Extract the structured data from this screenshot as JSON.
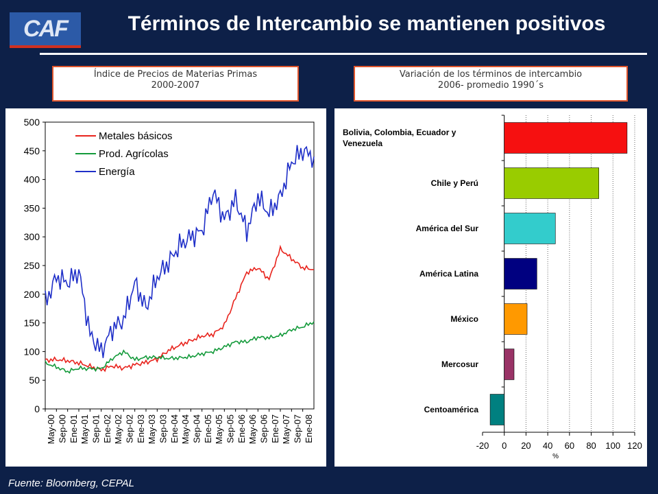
{
  "logo": {
    "text": "CAF"
  },
  "header": {
    "title": "Términos de Intercambio se mantienen positivos"
  },
  "captions": {
    "left": {
      "line1": "Índice de Precios de Materias Primas",
      "line2": "2000-2007"
    },
    "right": {
      "line1": "Variación de los términos de intercambio",
      "line2": "2006- promedio 1990´s"
    }
  },
  "source": "Fuente: Bloomberg, CEPAL",
  "chart_data": [
    {
      "type": "line",
      "categories": [
        "May-00",
        "Sep-00",
        "Ene-01",
        "May-01",
        "Sep-01",
        "Ene-02",
        "May-02",
        "Sep-02",
        "Ene-03",
        "May-03",
        "Sep-03",
        "Ene-04",
        "May-04",
        "Sep-04",
        "Ene-05",
        "May-05",
        "Sep-05",
        "Ene-06",
        "May-06",
        "Sep-06",
        "Ene-07",
        "May-07",
        "Sep-07",
        "Ene-08"
      ],
      "ylim": [
        0,
        500
      ],
      "yticks": [
        0,
        50,
        100,
        150,
        200,
        250,
        300,
        350,
        400,
        450,
        500
      ],
      "legend_position": "top-left",
      "series": [
        {
          "name": "Metales básicos",
          "color": "#e8231c",
          "values": [
            85,
            86,
            84,
            80,
            74,
            68,
            75,
            71,
            77,
            81,
            87,
            102,
            111,
            119,
            127,
            130,
            146,
            193,
            238,
            246,
            226,
            279,
            262,
            246
          ],
          "x_end": 24,
          "end_value": 243
        },
        {
          "name": "Prod. Agrícolas",
          "color": "#139a3a",
          "values": [
            80,
            73,
            65,
            71,
            70,
            70,
            88,
            100,
            86,
            90,
            90,
            88,
            89,
            91,
            96,
            100,
            108,
            117,
            117,
            125,
            124,
            128,
            138,
            143
          ],
          "x_end": 24,
          "end_value": 152
        },
        {
          "name": "Energía",
          "color": "#1f2fc8",
          "values": [
            185,
            230,
            220,
            240,
            130,
            100,
            140,
            155,
            220,
            175,
            230,
            255,
            285,
            300,
            310,
            380,
            330,
            365,
            310,
            370,
            340,
            370,
            430,
            450
          ],
          "x_end": 24,
          "end_value": 440
        }
      ]
    },
    {
      "type": "bar",
      "orientation": "horizontal",
      "categories": [
        "Bolivia, Colombia, Ecuador y Venezuela",
        "Chile y Perú",
        "América del Sur",
        "América Latina",
        "México",
        "Mercosur",
        "Centoamérica"
      ],
      "values": [
        113,
        87,
        47,
        30,
        21,
        9,
        -13
      ],
      "colors": [
        "#f61010",
        "#99cc00",
        "#33cccc",
        "#000080",
        "#ff9900",
        "#993366",
        "#008080"
      ],
      "xlim": [
        -20,
        120
      ],
      "xticks": [
        -20,
        0,
        20,
        40,
        60,
        80,
        100,
        120
      ],
      "xlabel": "%",
      "grid": "vertical dotted"
    }
  ]
}
